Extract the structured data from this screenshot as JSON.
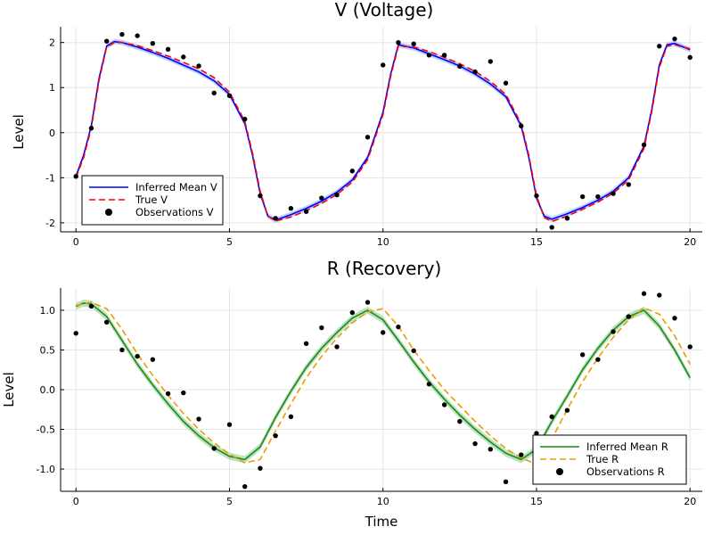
{
  "chart_data": [
    {
      "type": "line",
      "title": "V (Voltage)",
      "xlabel": "",
      "ylabel": "Level",
      "xlim": [
        -0.5,
        20.4
      ],
      "ylim": [
        -2.2,
        2.35
      ],
      "xticks": [
        0,
        5,
        10,
        15,
        20
      ],
      "yticks": [
        -2,
        -1,
        0,
        1,
        2
      ],
      "grid": true,
      "legend_position": "bottom-left",
      "series": [
        {
          "name": "Inferred Mean V",
          "color": "#0000ff",
          "style": "solid",
          "band_color": "#9fc0ff",
          "x": [
            0,
            0.25,
            0.5,
            0.75,
            1.0,
            1.25,
            1.5,
            2,
            2.5,
            3,
            3.5,
            4,
            4.5,
            5,
            5.5,
            5.75,
            6.0,
            6.25,
            6.5,
            7,
            7.5,
            8,
            8.5,
            9,
            9.5,
            10,
            10.25,
            10.5,
            11,
            11.5,
            12,
            12.5,
            13,
            13.5,
            14,
            14.5,
            14.75,
            15.0,
            15.25,
            15.5,
            16,
            16.5,
            17,
            17.5,
            18,
            18.5,
            18.75,
            19.0,
            19.25,
            19.5,
            20
          ],
          "y": [
            -0.97,
            -0.5,
            0.15,
            1.2,
            1.92,
            2.02,
            2.0,
            1.9,
            1.78,
            1.65,
            1.5,
            1.35,
            1.15,
            0.85,
            0.2,
            -0.5,
            -1.35,
            -1.85,
            -1.94,
            -1.82,
            -1.68,
            -1.52,
            -1.32,
            -1.05,
            -0.55,
            0.45,
            1.3,
            1.95,
            1.88,
            1.75,
            1.62,
            1.48,
            1.3,
            1.08,
            0.8,
            0.15,
            -0.55,
            -1.45,
            -1.85,
            -1.92,
            -1.8,
            -1.66,
            -1.5,
            -1.3,
            -1.0,
            -0.3,
            0.5,
            1.5,
            1.95,
            1.98,
            1.84
          ]
        },
        {
          "name": "True V",
          "color": "#ff0000",
          "style": "dashed",
          "x": [
            0,
            0.25,
            0.5,
            0.75,
            1.0,
            1.25,
            1.5,
            2,
            2.5,
            3,
            3.5,
            4,
            4.5,
            5,
            5.5,
            5.75,
            6.0,
            6.25,
            6.5,
            7,
            7.5,
            8,
            8.5,
            9,
            9.5,
            10,
            10.25,
            10.5,
            11,
            11.5,
            12,
            12.5,
            13,
            13.5,
            14,
            14.5,
            14.75,
            15.0,
            15.25,
            15.5,
            16,
            16.5,
            17,
            17.5,
            18,
            18.5,
            18.75,
            19.0,
            19.25,
            19.5,
            20
          ],
          "y": [
            -1.0,
            -0.55,
            0.1,
            1.15,
            1.9,
            2.0,
            2.0,
            1.93,
            1.82,
            1.7,
            1.56,
            1.42,
            1.22,
            0.9,
            0.25,
            -0.45,
            -1.3,
            -1.85,
            -1.96,
            -1.87,
            -1.73,
            -1.57,
            -1.37,
            -1.1,
            -0.6,
            0.4,
            1.25,
            1.92,
            1.9,
            1.8,
            1.67,
            1.53,
            1.36,
            1.14,
            0.85,
            0.2,
            -0.5,
            -1.4,
            -1.88,
            -1.97,
            -1.85,
            -1.7,
            -1.54,
            -1.34,
            -1.05,
            -0.35,
            0.45,
            1.45,
            1.92,
            1.95,
            1.86
          ]
        },
        {
          "name": "Observations V",
          "color": "#000000",
          "style": "points",
          "x": [
            0,
            0.5,
            1,
            1.5,
            2,
            2.5,
            3,
            3.5,
            4,
            4.5,
            5,
            5.5,
            6,
            6.5,
            7,
            7.5,
            8,
            8.5,
            9,
            9.5,
            10,
            10.5,
            11,
            11.5,
            12,
            12.5,
            13,
            13.5,
            14,
            14.5,
            15,
            15.5,
            16,
            16.5,
            17,
            17.5,
            18,
            18.5,
            19,
            19.5,
            20
          ],
          "y": [
            -0.97,
            0.1,
            2.03,
            2.18,
            2.15,
            1.98,
            1.85,
            1.68,
            1.48,
            0.88,
            0.82,
            0.3,
            -1.4,
            -1.9,
            -1.68,
            -1.75,
            -1.45,
            -1.38,
            -0.85,
            -0.1,
            1.5,
            2.0,
            1.97,
            1.72,
            1.72,
            1.47,
            1.35,
            1.58,
            1.1,
            0.15,
            -1.4,
            -2.1,
            -1.9,
            -1.42,
            -1.42,
            -1.35,
            -1.15,
            -0.27,
            1.92,
            2.08,
            1.67
          ]
        }
      ]
    },
    {
      "type": "line",
      "title": "R (Recovery)",
      "xlabel": "Time",
      "ylabel": "Level",
      "xlim": [
        -0.5,
        20.4
      ],
      "ylim": [
        -1.28,
        1.28
      ],
      "xticks": [
        0,
        5,
        10,
        15,
        20
      ],
      "yticks": [
        -1.0,
        -0.5,
        0.0,
        0.5,
        1.0
      ],
      "grid": true,
      "legend_position": "bottom-right",
      "series": [
        {
          "name": "Inferred Mean R",
          "color": "#1a8a1a",
          "style": "solid",
          "band_color": "#a3d6a3",
          "x": [
            0,
            0.25,
            0.5,
            1,
            1.5,
            2,
            2.5,
            3,
            3.5,
            4,
            4.5,
            5,
            5.5,
            6,
            6.5,
            7,
            7.5,
            8,
            8.5,
            9,
            9.5,
            10,
            10.5,
            11,
            11.5,
            12,
            12.5,
            13,
            13.5,
            14,
            14.5,
            15,
            15.5,
            16,
            16.5,
            17,
            17.5,
            18,
            18.5,
            19,
            19.5,
            20
          ],
          "y": [
            1.05,
            1.09,
            1.08,
            0.92,
            0.62,
            0.32,
            0.06,
            -0.18,
            -0.4,
            -0.58,
            -0.73,
            -0.84,
            -0.88,
            -0.72,
            -0.35,
            -0.02,
            0.28,
            0.52,
            0.72,
            0.9,
            1.0,
            0.88,
            0.62,
            0.35,
            0.1,
            -0.12,
            -0.32,
            -0.5,
            -0.66,
            -0.8,
            -0.88,
            -0.75,
            -0.4,
            -0.08,
            0.25,
            0.52,
            0.75,
            0.92,
            1.0,
            0.8,
            0.5,
            0.15
          ]
        },
        {
          "name": "True R",
          "color": "#e69f00",
          "style": "dashed",
          "x": [
            0,
            0.25,
            0.5,
            1,
            1.5,
            2,
            2.5,
            3,
            3.5,
            4,
            4.5,
            5,
            5.5,
            6,
            6.5,
            7,
            7.5,
            8,
            8.5,
            9,
            9.5,
            10,
            10.5,
            11,
            11.5,
            12,
            12.5,
            13,
            13.5,
            14,
            14.5,
            15,
            15.5,
            16,
            16.5,
            17,
            17.5,
            18,
            18.5,
            19,
            19.5,
            20
          ],
          "y": [
            1.06,
            1.08,
            1.1,
            1.02,
            0.76,
            0.45,
            0.18,
            -0.07,
            -0.3,
            -0.5,
            -0.67,
            -0.81,
            -0.92,
            -0.88,
            -0.52,
            -0.18,
            0.15,
            0.42,
            0.65,
            0.84,
            0.98,
            1.02,
            0.8,
            0.5,
            0.24,
            0.0,
            -0.2,
            -0.4,
            -0.58,
            -0.74,
            -0.86,
            -0.94,
            -0.62,
            -0.25,
            0.1,
            0.4,
            0.66,
            0.88,
            1.03,
            0.95,
            0.68,
            0.32
          ]
        },
        {
          "name": "Observations R",
          "color": "#000000",
          "style": "points",
          "x": [
            0,
            0.5,
            1,
            1.5,
            2,
            2.5,
            3,
            3.5,
            4,
            4.5,
            5,
            5.5,
            6,
            6.5,
            7,
            7.5,
            8,
            8.5,
            9,
            9.5,
            10,
            10.5,
            11,
            11.5,
            12,
            12.5,
            13,
            13.5,
            14,
            14.5,
            15,
            15.5,
            16,
            16.5,
            17,
            17.5,
            18,
            18.5,
            19,
            19.5,
            20
          ],
          "y": [
            0.71,
            1.05,
            0.85,
            0.5,
            0.42,
            0.38,
            -0.05,
            -0.04,
            -0.37,
            -0.74,
            -0.44,
            -1.22,
            -0.99,
            -0.58,
            -0.34,
            0.58,
            0.78,
            0.54,
            0.97,
            1.1,
            0.72,
            0.79,
            0.49,
            0.07,
            -0.19,
            -0.4,
            -0.68,
            -0.75,
            -1.16,
            -0.82,
            -0.55,
            -0.34,
            -0.26,
            0.44,
            0.38,
            0.73,
            0.92,
            1.21,
            1.19,
            0.9,
            0.54
          ]
        }
      ]
    }
  ]
}
